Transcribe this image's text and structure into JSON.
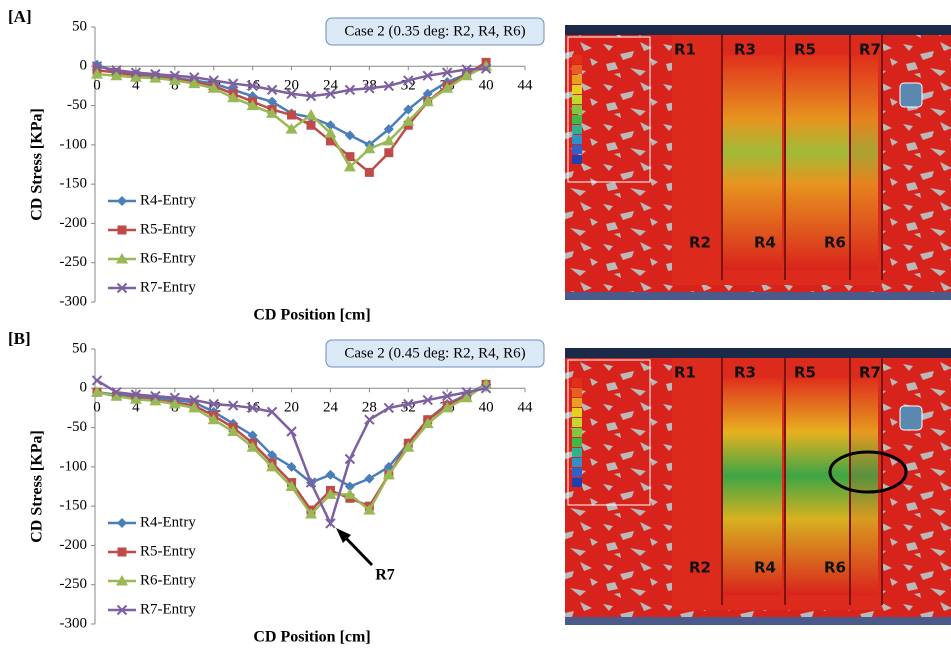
{
  "chart_data": [
    {
      "type": "line",
      "panel": "[A]",
      "case_label": "Case 2 (0.35 deg: R2, R4, R6)",
      "x_label": "CD Position [cm]",
      "y_label": "CD Stress [KPa]",
      "x": [
        0,
        2,
        4,
        6,
        8,
        10,
        12,
        14,
        16,
        18,
        20,
        22,
        24,
        26,
        28,
        30,
        32,
        34,
        36,
        38,
        40
      ],
      "xlim": [
        0,
        44
      ],
      "xticks": [
        0,
        4,
        8,
        12,
        16,
        20,
        24,
        28,
        32,
        36,
        40,
        44
      ],
      "ylim": [
        -300,
        50
      ],
      "yticks": [
        50,
        0,
        -50,
        -100,
        -150,
        -200,
        -250,
        -300
      ],
      "legend": "lower left",
      "series": [
        {
          "name": "R4-Entry",
          "color": "#4a7ebb",
          "marker": "diamond",
          "values": [
            2,
            -8,
            -10,
            -12,
            -15,
            -18,
            -22,
            -30,
            -38,
            -45,
            -60,
            -65,
            -75,
            -88,
            -100,
            -80,
            -55,
            -35,
            -20,
            -10,
            0
          ]
        },
        {
          "name": "R5-Entry",
          "color": "#be4b48",
          "marker": "square",
          "values": [
            -5,
            -8,
            -12,
            -14,
            -16,
            -20,
            -25,
            -35,
            -45,
            -55,
            -62,
            -75,
            -95,
            -115,
            -135,
            -110,
            -75,
            -45,
            -25,
            -10,
            5
          ]
        },
        {
          "name": "R6-Entry",
          "color": "#98b954",
          "marker": "triangle",
          "values": [
            -10,
            -12,
            -14,
            -15,
            -18,
            -22,
            -28,
            -40,
            -50,
            -60,
            -80,
            -62,
            -85,
            -128,
            -105,
            -95,
            -70,
            -45,
            -28,
            -12,
            0
          ]
        },
        {
          "name": "R7-Entry",
          "color": "#7d60a0",
          "marker": "x",
          "values": [
            0,
            -5,
            -8,
            -10,
            -12,
            -14,
            -18,
            -22,
            -25,
            -30,
            -35,
            -38,
            -35,
            -30,
            -28,
            -25,
            -18,
            -12,
            -8,
            -4,
            -3
          ]
        }
      ],
      "image_labels": [
        "R1",
        "R3",
        "R5",
        "R7",
        "R2",
        "R4",
        "R6"
      ]
    },
    {
      "type": "line",
      "panel": "[B]",
      "case_label": "Case 2 (0.45 deg: R2, R4, R6)",
      "x_label": "CD Position [cm]",
      "y_label": "CD Stress [KPa]",
      "x": [
        0,
        2,
        4,
        6,
        8,
        10,
        12,
        14,
        16,
        18,
        20,
        22,
        24,
        26,
        28,
        30,
        32,
        34,
        36,
        38,
        40
      ],
      "xlim": [
        0,
        44
      ],
      "xticks": [
        0,
        4,
        8,
        12,
        16,
        20,
        24,
        28,
        32,
        36,
        40,
        44
      ],
      "ylim": [
        -300,
        50
      ],
      "yticks": [
        50,
        0,
        -50,
        -100,
        -150,
        -200,
        -250,
        -300
      ],
      "legend": "lower left",
      "annotation": "R7",
      "series": [
        {
          "name": "R4-Entry",
          "color": "#4a7ebb",
          "marker": "diamond",
          "values": [
            -5,
            -8,
            -10,
            -12,
            -15,
            -18,
            -30,
            -45,
            -60,
            -85,
            -100,
            -120,
            -110,
            -125,
            -115,
            -100,
            -70,
            -40,
            -20,
            -8,
            5
          ]
        },
        {
          "name": "R5-Entry",
          "color": "#be4b48",
          "marker": "square",
          "values": [
            -5,
            -10,
            -12,
            -15,
            -18,
            -22,
            -35,
            -50,
            -70,
            -95,
            -120,
            -155,
            -130,
            -140,
            -150,
            -110,
            -70,
            -40,
            -22,
            -10,
            5
          ]
        },
        {
          "name": "R6-Entry",
          "color": "#98b954",
          "marker": "triangle",
          "values": [
            -5,
            -10,
            -14,
            -16,
            -20,
            -25,
            -40,
            -55,
            -75,
            -100,
            -125,
            -160,
            -135,
            -135,
            -155,
            -110,
            -75,
            -45,
            -25,
            -12,
            5
          ]
        },
        {
          "name": "R7-Entry",
          "color": "#7d60a0",
          "marker": "x",
          "values": [
            10,
            -5,
            -8,
            -10,
            -12,
            -15,
            -20,
            -22,
            -25,
            -30,
            -55,
            -120,
            -172,
            -90,
            -40,
            -25,
            -20,
            -15,
            -10,
            -5,
            0
          ]
        }
      ],
      "image_labels": [
        "R1",
        "R3",
        "R5",
        "R7",
        "R2",
        "R4",
        "R6"
      ]
    }
  ]
}
